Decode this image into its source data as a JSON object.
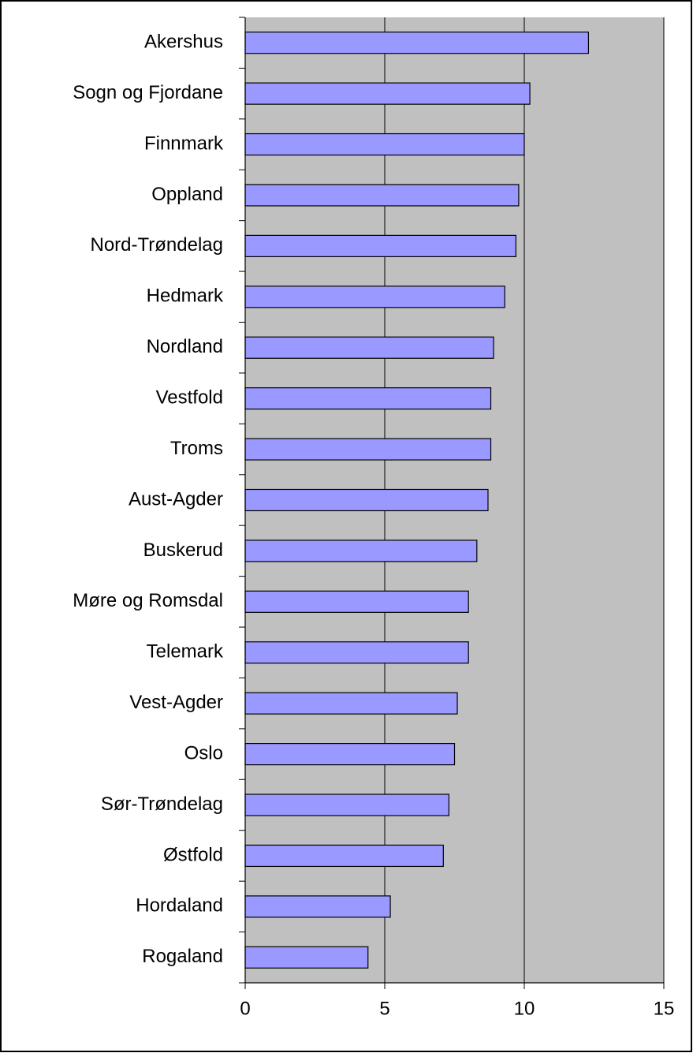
{
  "chart_data": {
    "type": "barh",
    "categories": [
      "Akershus",
      "Sogn og Fjordane",
      "Finnmark",
      "Oppland",
      "Nord-Trøndelag",
      "Hedmark",
      "Nordland",
      "Vestfold",
      "Troms",
      "Aust-Agder",
      "Buskerud",
      "Møre og Romsdal",
      "Telemark",
      "Vest-Agder",
      "Oslo",
      "Sør-Trøndelag",
      "Østfold",
      "Hordaland",
      "Rogaland"
    ],
    "values": [
      12.3,
      10.2,
      10.0,
      9.8,
      9.7,
      9.3,
      8.9,
      8.8,
      8.8,
      8.7,
      8.3,
      8.0,
      8.0,
      7.6,
      7.5,
      7.3,
      7.1,
      5.2,
      4.4
    ],
    "color": "#9999ff",
    "plot_background": "#c0c0c0",
    "xlim": [
      0,
      15
    ],
    "xticks": [
      0,
      5,
      10,
      15
    ],
    "grid": true
  }
}
